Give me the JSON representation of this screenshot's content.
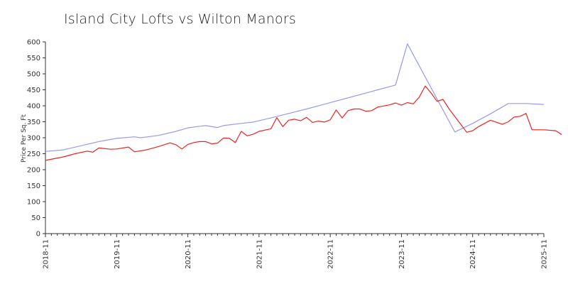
{
  "chart_data": {
    "type": "line",
    "title": "Island City Lofts vs Wilton Manors",
    "xlabel": "",
    "ylabel": "Price Per Sq. Ft",
    "ylim": [
      0,
      600
    ],
    "yticks": [
      0,
      50,
      100,
      150,
      200,
      250,
      300,
      350,
      400,
      450,
      500,
      550,
      600
    ],
    "xlim": [
      "2018-11",
      "2025-11"
    ],
    "xticks": [
      "2018-11",
      "2019-11",
      "2020-11",
      "2021-11",
      "2022-11",
      "2023-11",
      "2024-11",
      "2025-11"
    ],
    "grid": false,
    "legend": "none",
    "series": [
      {
        "color": "#9999ee",
        "points": [
          [
            "2018-11",
            257
          ],
          [
            "2019-02",
            262
          ],
          [
            "2019-05",
            275
          ],
          [
            "2019-08",
            288
          ],
          [
            "2019-11",
            298
          ],
          [
            "2020-02",
            303
          ],
          [
            "2020-03",
            300
          ],
          [
            "2020-06",
            307
          ],
          [
            "2020-09",
            320
          ],
          [
            "2020-11",
            331
          ],
          [
            "2021-01",
            336
          ],
          [
            "2021-02",
            338
          ],
          [
            "2021-04",
            332
          ],
          [
            "2021-05",
            338
          ],
          [
            "2021-08",
            345
          ],
          [
            "2021-10",
            349
          ],
          [
            "2022-01",
            362
          ],
          [
            "2022-04",
            376
          ],
          [
            "2022-07",
            390
          ],
          [
            "2022-10",
            405
          ],
          [
            "2023-01",
            420
          ],
          [
            "2023-04",
            435
          ],
          [
            "2023-07",
            450
          ],
          [
            "2023-10",
            465
          ],
          [
            "2023-12",
            594
          ],
          [
            "2024-08",
            318
          ],
          [
            "2024-11",
            345
          ],
          [
            "2025-02",
            375
          ],
          [
            "2025-05",
            407
          ],
          [
            "2025-08",
            407
          ],
          [
            "2025-11",
            404
          ]
        ]
      },
      {
        "color": "#ee2222",
        "points": [
          [
            "2018-11",
            229
          ],
          [
            "2019-02",
            240
          ],
          [
            "2019-04",
            250
          ],
          [
            "2019-06",
            258
          ],
          [
            "2019-07",
            255
          ],
          [
            "2019-08",
            268
          ],
          [
            "2019-10",
            264
          ],
          [
            "2019-11",
            265
          ],
          [
            "2020-01",
            271
          ],
          [
            "2020-02",
            256
          ],
          [
            "2020-04",
            262
          ],
          [
            "2020-06",
            272
          ],
          [
            "2020-08",
            284
          ],
          [
            "2020-09",
            278
          ],
          [
            "2020-10",
            265
          ],
          [
            "2020-11",
            279
          ],
          [
            "2020-12",
            285
          ],
          [
            "2021-01",
            288
          ],
          [
            "2021-02",
            288
          ],
          [
            "2021-03",
            281
          ],
          [
            "2021-04",
            283
          ],
          [
            "2021-05",
            299
          ],
          [
            "2021-06",
            298
          ],
          [
            "2021-07",
            285
          ],
          [
            "2021-08",
            320
          ],
          [
            "2021-09",
            306
          ],
          [
            "2021-10",
            311
          ],
          [
            "2021-11",
            320
          ],
          [
            "2022-01",
            328
          ],
          [
            "2022-02",
            363
          ],
          [
            "2022-03",
            335
          ],
          [
            "2022-04",
            355
          ],
          [
            "2022-05",
            358
          ],
          [
            "2022-06",
            353
          ],
          [
            "2022-07",
            364
          ],
          [
            "2022-08",
            348
          ],
          [
            "2022-09",
            352
          ],
          [
            "2022-10",
            349
          ],
          [
            "2022-11",
            356
          ],
          [
            "2022-12",
            387
          ],
          [
            "2023-01",
            362
          ],
          [
            "2023-02",
            385
          ],
          [
            "2023-03",
            390
          ],
          [
            "2023-04",
            390
          ],
          [
            "2023-05",
            383
          ],
          [
            "2023-06",
            385
          ],
          [
            "2023-07",
            396
          ],
          [
            "2023-09",
            403
          ],
          [
            "2023-10",
            409
          ],
          [
            "2023-11",
            402
          ],
          [
            "2023-12",
            410
          ],
          [
            "2024-01",
            406
          ],
          [
            "2024-02",
            427
          ],
          [
            "2024-03",
            462
          ],
          [
            "2024-04",
            440
          ],
          [
            "2024-05",
            414
          ],
          [
            "2024-06",
            420
          ],
          [
            "2024-07",
            391
          ],
          [
            "2024-10",
            317
          ],
          [
            "2024-11",
            322
          ],
          [
            "2024-12",
            335
          ],
          [
            "2025-02",
            355
          ],
          [
            "2025-04",
            342
          ],
          [
            "2025-05",
            350
          ],
          [
            "2025-06",
            365
          ],
          [
            "2025-07",
            367
          ],
          [
            "2025-08",
            376
          ],
          [
            "2025-09",
            325
          ],
          [
            "2025-11",
            325
          ],
          [
            "2026-01",
            322
          ],
          [
            "2026-02",
            310
          ]
        ]
      }
    ]
  }
}
